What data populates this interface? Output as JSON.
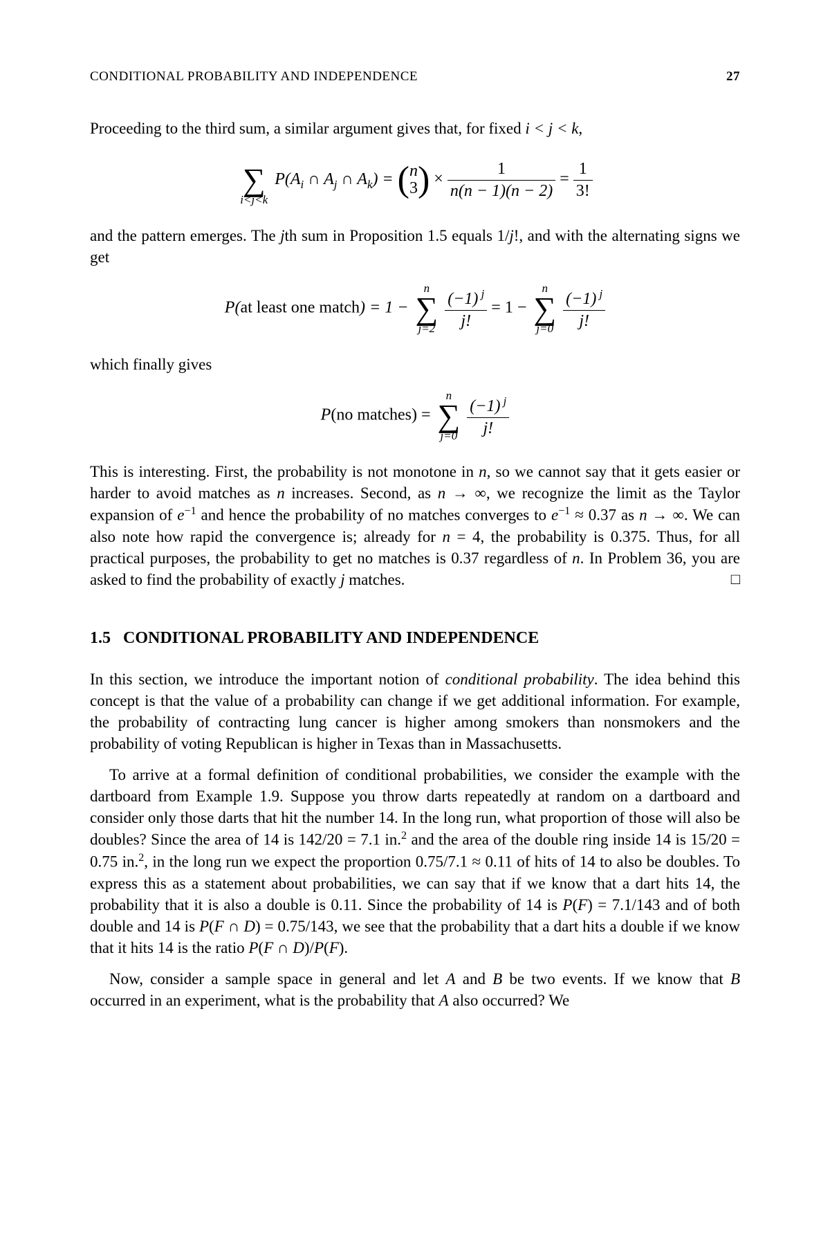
{
  "header": {
    "title": "CONDITIONAL PROBABILITY AND INDEPENDENCE",
    "page_number": "27"
  },
  "para1": "Proceeding to the third sum, a similar argument gives that, for fixed ",
  "para1_math": "i < j < k",
  "eq1": {
    "sum_bot": "i<j<k",
    "lhs": "P(Aᵢ ∩ Aⱼ ∩ Aₖ) = ",
    "binom_top": "n",
    "binom_bot": "3",
    "times": " × ",
    "frac_num": "1",
    "frac_den": "n(n − 1)(n − 2)",
    "eq": " = ",
    "rhs_num": "1",
    "rhs_den": "3!"
  },
  "para2a": "and the pattern emerges. The ",
  "para2b": "th sum in Proposition 1.5 equals 1/",
  "para2c": "!, and with the alternating signs we get",
  "para2_j1": "j",
  "para2_j2": "j",
  "eq2": {
    "lhs": "P(at least one match) = 1 − ",
    "sum1_top": "n",
    "sum1_bot": "j=2",
    "f_num": "(−1)ʲ",
    "f_den": "j!",
    "mid": " = 1 − ",
    "sum2_top": "n",
    "sum2_bot": "j=0"
  },
  "para3": "which finally gives",
  "eq3": {
    "lhs": "P(no matches) = ",
    "sum_top": "n",
    "sum_bot": "j=0",
    "f_num": "(−1)ʲ",
    "f_den": "j!"
  },
  "para4": "This is interesting. First, the probability is not monotone in n, so we cannot say that it gets easier or harder to avoid matches as n increases. Second, as n → ∞, we recognize the limit as the Taylor expansion of e⁻¹ and hence the probability of no matches converges to e⁻¹ ≈ 0.37 as n → ∞. We can also note how rapid the convergence is; already for n = 4, the probability is 0.375. Thus, for all practical purposes, the probability to get no matches is 0.37 regardless of n. In Problem 36, you are asked to find the probability of exactly j matches.",
  "qed": "□",
  "section": {
    "number": "1.5",
    "title": "CONDITIONAL PROBABILITY AND INDEPENDENCE"
  },
  "para5a": "In this section, we introduce the important notion of ",
  "para5_em": "conditional probability",
  "para5b": ". The idea behind this concept is that the value of a probability can change if we get additional information. For example, the probability of contracting lung cancer is higher among smokers than nonsmokers and the probability of voting Republican is higher in Texas than in Massachusetts.",
  "para6": "To arrive at a formal definition of conditional probabilities, we consider the example with the dartboard from Example 1.9. Suppose you throw darts repeatedly at random on a dartboard and consider only those darts that hit the number 14. In the long run, what proportion of those will also be doubles? Since the area of 14 is 142/20 = 7.1 in.² and the area of the double ring inside 14 is 15/20 = 0.75 in.², in the long run we expect the proportion 0.75/7.1 ≈ 0.11 of hits of 14 to also be doubles. To express this as a statement about probabilities, we can say that if we know that a dart hits 14, the probability that it is also a double is 0.11. Since the probability of 14 is P(F) = 7.1/143 and of both double and 14 is P(F ∩ D) = 0.75/143, we see that the probability that a dart hits a double if we know that it hits 14 is the ratio P(F ∩ D)/P(F).",
  "para7": "Now, consider a sample space in general and let A and B be two events. If we know that B occurred in an experiment, what is the probability that A also occurred? We"
}
